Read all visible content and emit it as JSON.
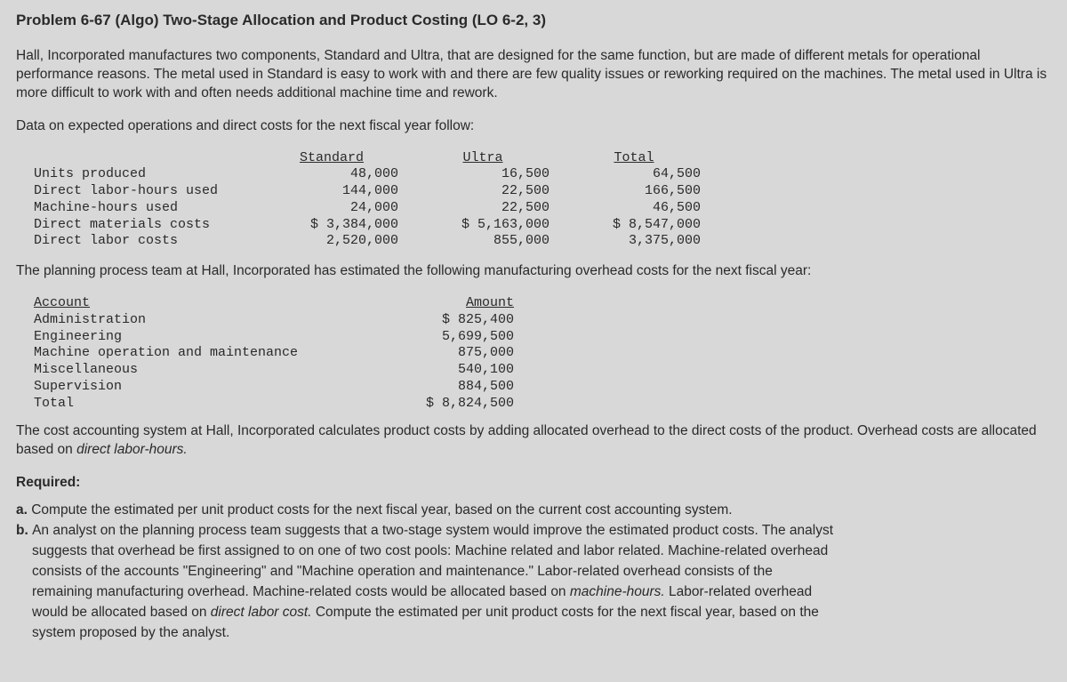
{
  "title": "Problem 6-67 (Algo) Two-Stage Allocation and Product Costing (LO 6-2, 3)",
  "intro": "Hall, Incorporated manufactures two components, Standard and Ultra, that are designed for the same function, but are made of different metals for operational performance reasons. The metal used in Standard is easy to work with and there are few quality issues or reworking required on the machines. The metal used in Ultra is more difficult to work with and often needs additional machine time and rework.",
  "data_lead": "Data on expected operations and direct costs for the next fiscal year follow:",
  "t1": {
    "h1": "Standard",
    "h2": "Ultra",
    "h3": "Total",
    "rows": [
      {
        "label": "Units produced",
        "c1": "48,000",
        "c2": "16,500",
        "c3": "64,500"
      },
      {
        "label": "Direct labor-hours used",
        "c1": "144,000",
        "c2": "22,500",
        "c3": "166,500"
      },
      {
        "label": "Machine-hours used",
        "c1": "24,000",
        "c2": "22,500",
        "c3": "46,500"
      },
      {
        "label": "Direct materials costs",
        "c1": "$ 3,384,000",
        "c2": "$ 5,163,000",
        "c3": "$ 8,547,000"
      },
      {
        "label": "Direct labor costs",
        "c1": "2,520,000",
        "c2": "855,000",
        "c3": "3,375,000"
      }
    ]
  },
  "planning": "The planning process team at Hall, Incorporated has estimated the following manufacturing overhead costs for the next fiscal year:",
  "t2": {
    "h1": "Account",
    "h2": "Amount",
    "rows": [
      {
        "label": "Administration",
        "amt": "$ 825,400"
      },
      {
        "label": "Engineering",
        "amt": "5,699,500"
      },
      {
        "label": "Machine operation and maintenance",
        "amt": "875,000"
      },
      {
        "label": "Miscellaneous",
        "amt": "540,100"
      },
      {
        "label": "Supervision",
        "amt": "884,500"
      }
    ],
    "total_label": "Total",
    "total_amt": "$ 8,824,500"
  },
  "cost_para_pre": "The cost accounting system at Hall, Incorporated calculates product costs by adding allocated overhead to the direct costs of the product. Overhead costs are allocated based on ",
  "cost_para_italic": "direct labor-hours.",
  "required_label": "Required:",
  "req_a_prefix": "a. ",
  "req_a": "Compute the estimated per unit product costs for the next fiscal year, based on the current cost accounting system.",
  "req_b_prefix": "b. ",
  "req_b_1": "An analyst on the planning process team suggests that a two-stage system would improve the estimated product costs. The analyst",
  "req_b_2": "suggests that overhead be first assigned to on one of two cost pools: Machine related and labor related. Machine-related overhead",
  "req_b_3": "consists of the accounts \"Engineering\" and \"Machine operation and maintenance.\" Labor-related overhead consists of the",
  "req_b_4a": "remaining manufacturing overhead. Machine-related costs would be allocated based on ",
  "req_b_4i": "machine-hours.",
  "req_b_4b": " Labor-related overhead",
  "req_b_5a": "would be allocated based on ",
  "req_b_5i": "direct labor cost.",
  "req_b_5b": " Compute the estimated per unit product costs for the next fiscal year, based on the",
  "req_b_6": "system proposed by the analyst.",
  "colors": {
    "background": "#d8d8d8",
    "text": "#2a2a2a"
  }
}
